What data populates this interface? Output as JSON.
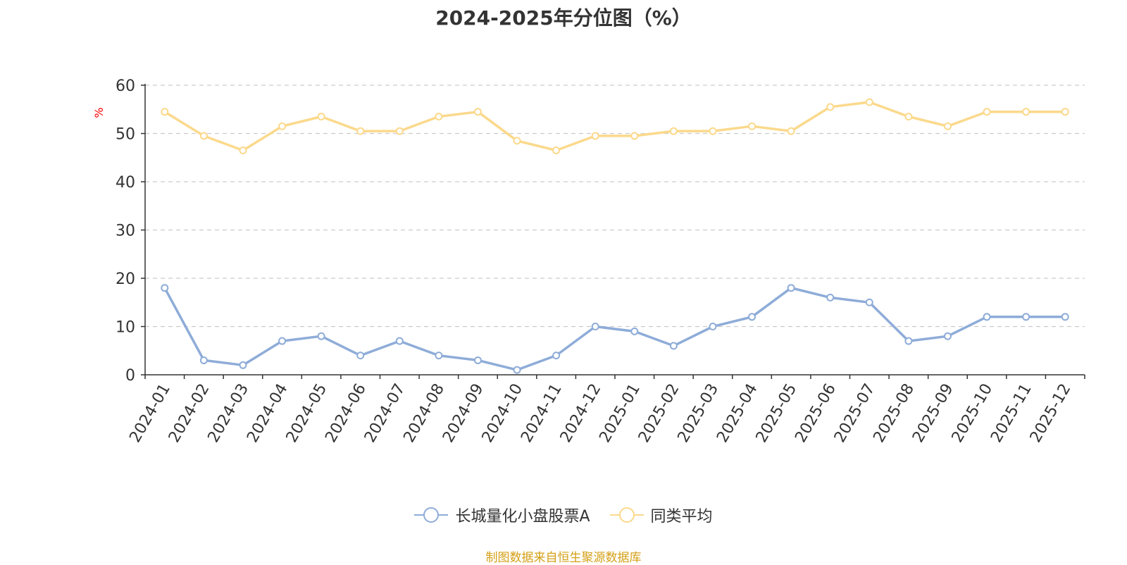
{
  "colors": {
    "series1": "#8eacd8",
    "series2": "#fbd98c",
    "unit": "#ff0000",
    "source": "#d4a017"
  },
  "chart_data": {
    "type": "line",
    "title": "2024-2025年分位图（%）",
    "ylabel": "%",
    "xlabel": "",
    "ylim": [
      0,
      60
    ],
    "yticks": [
      0,
      10,
      20,
      30,
      40,
      50,
      60
    ],
    "grid": true,
    "legend_position": "bottom-center",
    "categories": [
      "2024-01",
      "2024-02",
      "2024-03",
      "2024-04",
      "2024-05",
      "2024-06",
      "2024-07",
      "2024-08",
      "2024-09",
      "2024-10",
      "2024-11",
      "2024-12",
      "2025-01",
      "2025-02",
      "2025-03",
      "2025-04",
      "2025-05",
      "2025-06",
      "2025-07",
      "2025-08",
      "2025-09",
      "2025-10",
      "2025-11",
      "2025-12"
    ],
    "series": [
      {
        "name": "长城量化小盘股票A",
        "color": "#8eacd8",
        "values": [
          18,
          3,
          2,
          7,
          8,
          4,
          7,
          4,
          3,
          1,
          4,
          10,
          9,
          6,
          10,
          12,
          18,
          16,
          15,
          7,
          8,
          12,
          12,
          12
        ]
      },
      {
        "name": "同类平均",
        "color": "#fbd98c",
        "values": [
          54.5,
          49.5,
          46.5,
          51.5,
          53.5,
          50.5,
          50.5,
          53.5,
          54.5,
          48.5,
          46.5,
          49.5,
          49.5,
          50.5,
          50.5,
          51.5,
          50.5,
          55.5,
          56.5,
          53.5,
          51.5,
          54.5,
          54.5,
          54.5
        ]
      }
    ]
  },
  "source": "制图数据来自恒生聚源数据库"
}
